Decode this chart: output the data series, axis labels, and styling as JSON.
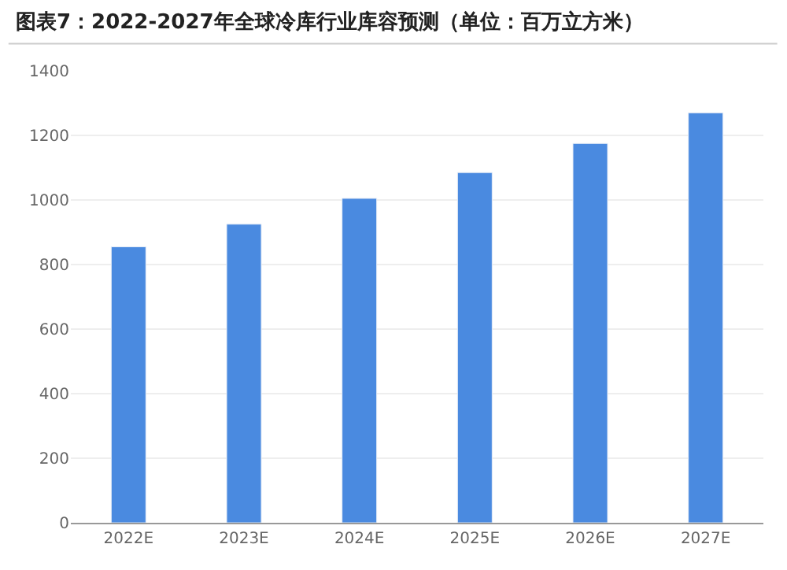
{
  "chart_data": {
    "type": "bar",
    "title": "图表7：2022-2027年全球冷库行业库容预测（单位：百万立方米）",
    "categories": [
      "2022E",
      "2023E",
      "2024E",
      "2025E",
      "2026E",
      "2027E"
    ],
    "values": [
      855,
      925,
      1005,
      1085,
      1175,
      1270
    ],
    "color": "#4a8ae0",
    "ylim": [
      0,
      1400
    ],
    "yticks": [
      0,
      200,
      400,
      600,
      800,
      1000,
      1200,
      1400
    ],
    "grid": "y",
    "legend": false
  }
}
